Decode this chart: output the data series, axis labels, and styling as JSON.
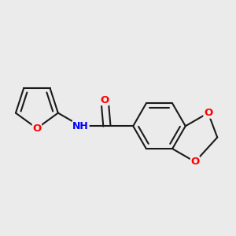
{
  "bg_color": "#EBEBEB",
  "bond_color": "#1a1a1a",
  "bond_width": 1.5,
  "atom_colors": {
    "O": "#ff0000",
    "N": "#0000ff"
  },
  "font_size_atom": 9.5,
  "fig_width": 3.0,
  "fig_height": 3.0,
  "dpi": 100,
  "xlim": [
    -0.1,
    1.05
  ],
  "ylim": [
    -0.52,
    0.52
  ]
}
